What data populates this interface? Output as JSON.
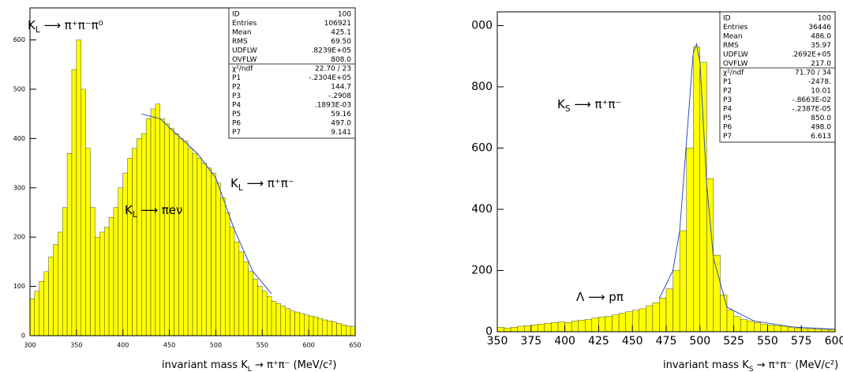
{
  "chart_data": [
    {
      "type": "histogram",
      "bins": [
        300,
        305,
        310,
        315,
        320,
        325,
        330,
        335,
        340,
        345,
        350,
        355,
        360,
        365,
        370,
        375,
        380,
        385,
        390,
        395,
        400,
        405,
        410,
        415,
        420,
        425,
        430,
        435,
        440,
        445,
        450,
        455,
        460,
        465,
        470,
        475,
        480,
        485,
        490,
        495,
        500,
        505,
        510,
        515,
        520,
        525,
        530,
        535,
        540,
        545,
        550,
        555,
        560,
        565,
        570,
        575,
        580,
        585,
        590,
        595,
        600,
        605,
        610,
        615,
        620,
        625,
        630,
        635,
        640,
        645,
        650
      ],
      "values": [
        75,
        90,
        110,
        130,
        160,
        185,
        210,
        260,
        370,
        540,
        600,
        500,
        380,
        260,
        200,
        210,
        220,
        240,
        260,
        300,
        330,
        360,
        380,
        400,
        410,
        440,
        460,
        470,
        440,
        430,
        420,
        410,
        400,
        395,
        380,
        370,
        360,
        350,
        340,
        330,
        310,
        280,
        250,
        220,
        190,
        170,
        150,
        130,
        115,
        100,
        90,
        80,
        70,
        65,
        60,
        55,
        50,
        48,
        45,
        42,
        40,
        38,
        35,
        32,
        30,
        28,
        25,
        22,
        20,
        18
      ],
      "color": "#ffff00",
      "fit": {
        "x": [
          420,
          440,
          460,
          480,
          500,
          520,
          540,
          560
        ],
        "values": [
          450,
          440,
          405,
          370,
          320,
          215,
          130,
          85
        ],
        "color": "#3050c0"
      },
      "xlim": [
        300,
        650
      ],
      "xticks": [
        300,
        350,
        400,
        450,
        500,
        550,
        600,
        650
      ],
      "ylim": [
        0,
        665
      ],
      "yticks": [
        0,
        100,
        200,
        300,
        400,
        500,
        600
      ],
      "x_label": {
        "main": "invariant mass  K",
        "sub": "L",
        "rest": " → π⁺π⁻ (MeV/c²)"
      },
      "annotations": [
        {
          "main": "K",
          "sub": "L",
          "rest": " ⟶ π⁺π⁻π⁰"
        },
        {
          "main": "K",
          "sub": "L",
          "rest": " ⟶ πeν"
        },
        {
          "main": "K",
          "sub": "L",
          "rest": " ⟶ π⁺π⁻"
        }
      ],
      "stats": [
        [
          "ID",
          "100"
        ],
        [
          "Entries",
          "106921"
        ],
        [
          "Mean",
          "425.1"
        ],
        [
          "RMS",
          "69.50"
        ],
        [
          "UDFLW",
          ".8239E+05"
        ],
        [
          "OVFLW",
          "808.0"
        ]
      ],
      "fit_params": [
        [
          "χ²/ndf",
          "22.70   /   23"
        ],
        [
          "P1",
          "-.2304E+05"
        ],
        [
          "P2",
          "144.7"
        ],
        [
          "P3",
          "-.2908"
        ],
        [
          "P4",
          ".1893E-03"
        ],
        [
          "P5",
          "59.16"
        ],
        [
          "P6",
          "497.0"
        ],
        [
          "P7",
          "9.141"
        ]
      ]
    },
    {
      "type": "histogram",
      "bins": [
        350,
        355,
        360,
        365,
        370,
        375,
        380,
        385,
        390,
        395,
        400,
        405,
        410,
        415,
        420,
        425,
        430,
        435,
        440,
        445,
        450,
        455,
        460,
        465,
        470,
        475,
        480,
        485,
        490,
        495,
        500,
        505,
        510,
        515,
        520,
        525,
        530,
        535,
        540,
        545,
        550,
        555,
        560,
        565,
        570,
        575,
        580,
        585,
        590,
        595,
        600
      ],
      "values": [
        15,
        12,
        15,
        18,
        20,
        22,
        25,
        28,
        30,
        32,
        30,
        35,
        38,
        40,
        45,
        48,
        50,
        55,
        60,
        65,
        70,
        75,
        85,
        95,
        110,
        140,
        200,
        330,
        600,
        930,
        880,
        500,
        250,
        120,
        70,
        50,
        40,
        35,
        30,
        25,
        22,
        20,
        18,
        15,
        12,
        10,
        10,
        8,
        8,
        7
      ],
      "color": "#ffff00",
      "fit": {
        "x": [
          470,
          480,
          485,
          490,
          495,
          497.5,
          500,
          505,
          510,
          520,
          540,
          570,
          600
        ],
        "values": [
          110,
          200,
          330,
          620,
          910,
          940,
          880,
          480,
          240,
          80,
          35,
          15,
          8
        ],
        "color": "#3050c0"
      },
      "xlim": [
        350,
        600
      ],
      "xticks": [
        350,
        375,
        400,
        425,
        450,
        475,
        500,
        525,
        550,
        575,
        {
          "value": 600,
          "label": "600"
        }
      ],
      "ylim": [
        0,
        1045
      ],
      "yticks": [
        0,
        200,
        400,
        600,
        800,
        {
          "value": 1000,
          "label": "000"
        }
      ],
      "x_label": {
        "main": "invariant mass  K",
        "sub": "S",
        "rest": " → π⁺π⁻ (MeV/c²)"
      },
      "annotations": [
        {
          "main": "K",
          "sub": "S",
          "rest": " ⟶ π⁺π⁻"
        },
        {
          "main": "Λ ⟶ pπ",
          "sub": "",
          "rest": ""
        }
      ],
      "stats": [
        [
          "ID",
          "100"
        ],
        [
          "Entries",
          "36446"
        ],
        [
          "Mean",
          "486.0"
        ],
        [
          "RMS",
          "35.97"
        ],
        [
          "UDFLW",
          ".2692E+05"
        ],
        [
          "OVFLW",
          "217.0"
        ]
      ],
      "fit_params": [
        [
          "χ²/ndf",
          "71.70   /   34"
        ],
        [
          "P1",
          "-2478."
        ],
        [
          "P2",
          "10.01"
        ],
        [
          "P3",
          "-.8663E-02"
        ],
        [
          "P4",
          "-.2387E-05"
        ],
        [
          "P5",
          "850.0"
        ],
        [
          "P6",
          "498.0"
        ],
        [
          "P7",
          "6.613"
        ]
      ]
    }
  ]
}
